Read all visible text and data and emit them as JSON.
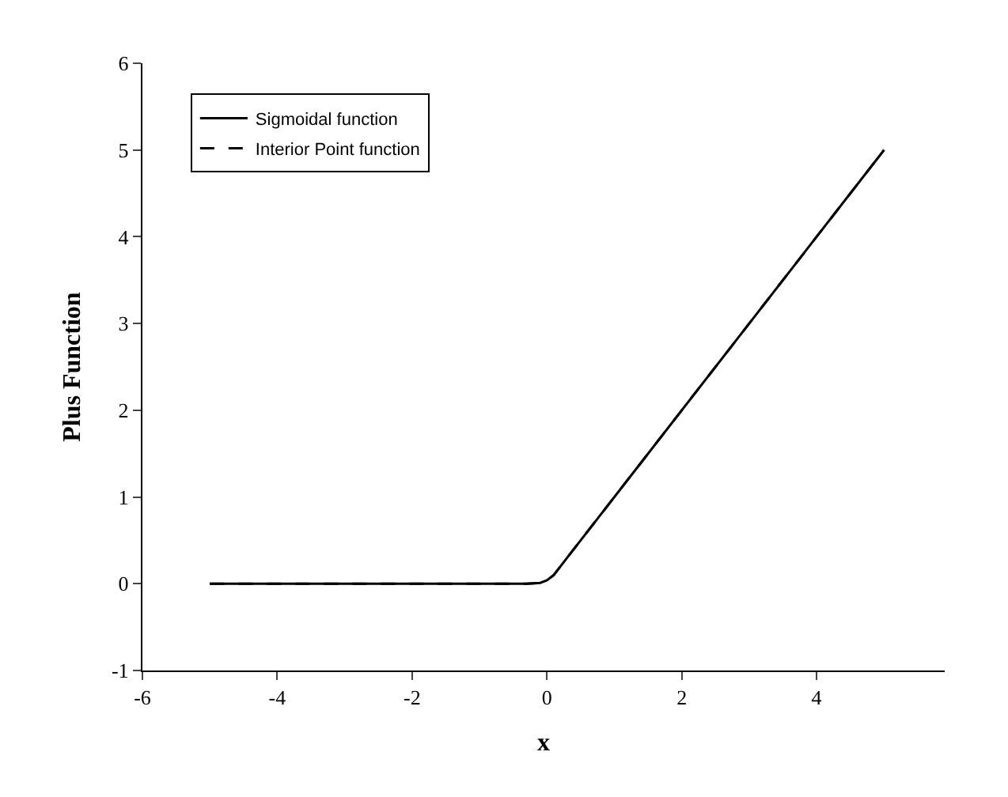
{
  "chart_data": {
    "type": "line",
    "xlabel": "x",
    "ylabel": "Plus Function",
    "series": [
      {
        "name": "Sigmoidal function",
        "color": "#000000",
        "line_style": "solid",
        "x": [
          -5,
          -0.3,
          -0.1,
          0,
          0.1,
          0.3,
          5
        ],
        "values": [
          0,
          0,
          0.01,
          0.04,
          0.1,
          0.3,
          5
        ]
      },
      {
        "name": "Interior Point function",
        "color": "#000000",
        "line_style": "dashed",
        "x": [
          -5,
          -0.3,
          -0.1,
          0,
          0.1,
          0.3,
          5
        ],
        "values": [
          0,
          0,
          0.01,
          0.04,
          0.1,
          0.3,
          5
        ]
      }
    ],
    "xlim": [
      -6,
      5.9
    ],
    "xticks": [
      -6,
      -4,
      -2,
      0,
      2,
      4
    ],
    "ylim": [
      -1,
      6
    ],
    "yticks": [
      -1,
      0,
      1,
      2,
      3,
      4,
      5,
      6
    ],
    "legend": "top left",
    "marker": "none"
  }
}
